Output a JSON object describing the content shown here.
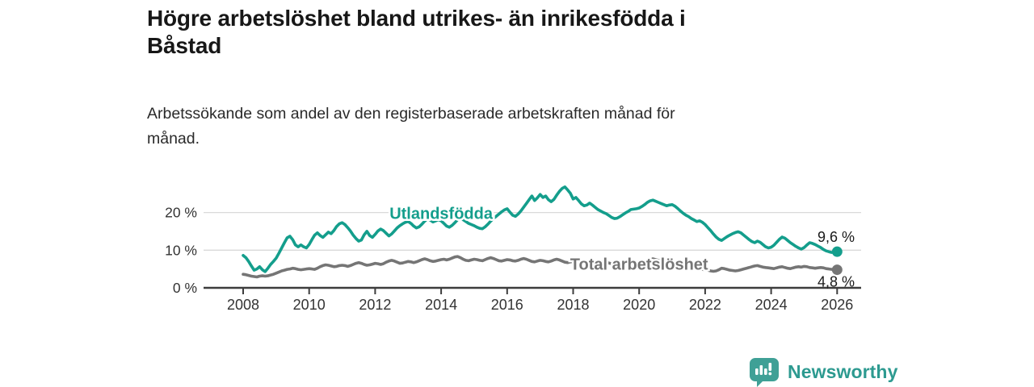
{
  "header": {
    "title_line1": "Högre arbetslöshet bland utrikes- än inrikesfödda i",
    "title_line2": "Båstad",
    "subtitle_line1": "Arbetssökande som andel av den registerbaserade arbetskraften månad för",
    "subtitle_line2": "månad."
  },
  "footer": {
    "brand": "Newsworthy"
  },
  "colors": {
    "accent_teal": "#149e8c",
    "series_gray": "#757575",
    "grid_gray": "#d9d9d9",
    "axis_dark": "#3d3d3d",
    "logo_bubble_teal": "#3fa096",
    "logo_text_teal": "#2d9a90"
  },
  "chart_data": {
    "type": "line",
    "title": "Högre arbetslöshet bland utrikes- än inrikesfödda i Båstad",
    "subtitle": "Arbetssökande som andel av den registerbaserade arbetskraften månad för månad.",
    "x_unit": "month",
    "x_start_year": 2008,
    "x_end_year": 2026,
    "x_ticks": [
      2008,
      2010,
      2012,
      2014,
      2016,
      2018,
      2020,
      2022,
      2024,
      2026
    ],
    "y_ticks": [
      {
        "value": 0,
        "label": "0 %"
      },
      {
        "value": 10,
        "label": "10 %"
      },
      {
        "value": 20,
        "label": "20 %"
      }
    ],
    "ylim": [
      0,
      27.5
    ],
    "grid": "horizontal",
    "legend": "inline-labels",
    "series": [
      {
        "name": "Utlandsfödda",
        "color": "#149e8c",
        "end_label": "9,6 %",
        "end_label_side": "above",
        "end_value": 9.6,
        "name_label_at": {
          "year": 2014.0,
          "value": 19.8
        },
        "values": [
          8.6,
          8.0,
          7.0,
          5.8,
          4.7,
          5.0,
          5.6,
          4.8,
          4.3,
          5.2,
          6.2,
          7.0,
          7.9,
          9.2,
          10.6,
          12.0,
          13.3,
          13.7,
          12.8,
          11.4,
          10.9,
          11.4,
          10.9,
          10.6,
          11.5,
          12.8,
          14.0,
          14.6,
          13.9,
          13.4,
          14.1,
          14.8,
          14.4,
          15.2,
          16.3,
          17.0,
          17.3,
          16.8,
          16.0,
          15.1,
          14.0,
          13.1,
          12.4,
          12.7,
          14.1,
          15.0,
          13.9,
          13.4,
          14.2,
          15.1,
          15.6,
          15.2,
          14.5,
          13.8,
          14.3,
          15.1,
          15.9,
          16.5,
          17.0,
          17.4,
          17.6,
          17.1,
          16.4,
          15.9,
          16.2,
          16.9,
          17.7,
          18.3,
          18.0,
          17.5,
          17.8,
          18.1,
          17.8,
          17.1,
          16.4,
          16.1,
          16.6,
          17.3,
          18.1,
          18.5,
          18.1,
          17.6,
          17.1,
          16.8,
          16.5,
          16.1,
          15.8,
          15.7,
          16.2,
          16.9,
          17.7,
          18.4,
          19.0,
          19.6,
          20.2,
          20.7,
          21.0,
          20.1,
          19.3,
          19.0,
          19.6,
          20.4,
          21.4,
          22.4,
          23.4,
          24.4,
          23.2,
          23.9,
          24.8,
          24.0,
          24.4,
          23.4,
          22.9,
          23.5,
          24.6,
          25.6,
          26.4,
          26.8,
          26.0,
          25.1,
          23.6,
          24.0,
          23.2,
          22.3,
          21.8,
          22.0,
          22.5,
          22.0,
          21.4,
          20.8,
          20.4,
          20.0,
          19.7,
          19.2,
          18.7,
          18.4,
          18.5,
          18.9,
          19.4,
          19.9,
          20.3,
          20.8,
          20.9,
          21.0,
          21.2,
          21.6,
          22.1,
          22.7,
          23.1,
          23.3,
          23.0,
          22.7,
          22.4,
          22.1,
          21.8,
          22.0,
          22.1,
          21.7,
          21.1,
          20.4,
          19.8,
          19.3,
          18.9,
          18.4,
          18.0,
          17.6,
          17.8,
          17.4,
          16.8,
          16.0,
          15.2,
          14.3,
          13.5,
          12.9,
          12.6,
          13.1,
          13.6,
          14.0,
          14.4,
          14.7,
          14.9,
          14.6,
          14.0,
          13.4,
          12.8,
          12.3,
          12.0,
          12.4,
          12.1,
          11.5,
          10.9,
          10.6,
          10.8,
          11.3,
          12.1,
          12.9,
          13.5,
          13.2,
          12.6,
          12.0,
          11.5,
          11.0,
          10.6,
          10.3,
          10.7,
          11.4,
          12.0,
          11.8,
          11.5,
          11.1,
          10.7,
          10.2,
          9.8,
          9.6,
          9.4,
          9.5,
          9.6
        ]
      },
      {
        "name": "Total arbetslöshet",
        "color": "#757575",
        "end_label": "4,8 %",
        "end_label_side": "below",
        "end_value": 4.8,
        "name_label_at": {
          "year": 2020.0,
          "value": 6.3
        },
        "values": [
          3.6,
          3.5,
          3.3,
          3.1,
          3.0,
          2.9,
          3.1,
          3.2,
          3.1,
          3.2,
          3.4,
          3.6,
          3.9,
          4.2,
          4.5,
          4.7,
          4.9,
          5.0,
          5.2,
          5.1,
          4.9,
          4.8,
          4.9,
          5.0,
          5.1,
          5.0,
          4.9,
          5.2,
          5.6,
          5.9,
          6.1,
          6.0,
          5.8,
          5.6,
          5.7,
          5.9,
          6.0,
          5.9,
          5.7,
          5.9,
          6.2,
          6.5,
          6.7,
          6.5,
          6.2,
          6.0,
          6.1,
          6.3,
          6.5,
          6.4,
          6.2,
          6.4,
          6.8,
          7.1,
          7.3,
          7.1,
          6.8,
          6.5,
          6.6,
          6.8,
          7.0,
          6.9,
          6.7,
          6.9,
          7.2,
          7.5,
          7.7,
          7.5,
          7.2,
          7.0,
          7.1,
          7.3,
          7.5,
          7.6,
          7.4,
          7.6,
          7.9,
          8.2,
          8.3,
          8.0,
          7.6,
          7.3,
          7.2,
          7.4,
          7.6,
          7.5,
          7.3,
          7.2,
          7.5,
          7.8,
          8.0,
          7.8,
          7.5,
          7.2,
          7.1,
          7.3,
          7.5,
          7.4,
          7.2,
          7.1,
          7.3,
          7.6,
          7.8,
          7.6,
          7.3,
          7.0,
          6.9,
          7.1,
          7.3,
          7.2,
          7.0,
          6.9,
          7.1,
          7.4,
          7.6,
          7.4,
          7.1,
          6.8,
          6.7,
          6.9,
          7.0,
          6.9,
          6.7,
          6.6,
          6.8,
          7.1,
          7.3,
          7.1,
          6.8,
          6.5,
          6.4,
          6.6,
          6.7,
          6.6,
          6.4,
          6.3,
          6.5,
          6.8,
          7.0,
          6.8,
          6.5,
          6.3,
          6.4,
          6.6,
          6.8,
          6.9,
          7.1,
          7.4,
          7.6,
          7.7,
          7.5,
          7.3,
          7.0,
          6.8,
          6.7,
          6.6,
          6.5,
          6.4,
          6.2,
          6.0,
          5.9,
          5.8,
          5.7,
          5.5,
          5.3,
          5.1,
          5.0,
          4.9,
          4.8,
          4.7,
          4.5,
          4.4,
          4.5,
          4.8,
          5.2,
          5.1,
          4.9,
          4.7,
          4.6,
          4.5,
          4.6,
          4.8,
          5.0,
          5.2,
          5.4,
          5.6,
          5.8,
          5.9,
          5.7,
          5.5,
          5.4,
          5.3,
          5.2,
          5.1,
          5.3,
          5.5,
          5.6,
          5.4,
          5.2,
          5.1,
          5.3,
          5.5,
          5.6,
          5.5,
          5.7,
          5.6,
          5.4,
          5.3,
          5.2,
          5.3,
          5.4,
          5.3,
          5.1,
          5.0,
          4.9,
          4.9,
          4.8
        ]
      }
    ]
  }
}
